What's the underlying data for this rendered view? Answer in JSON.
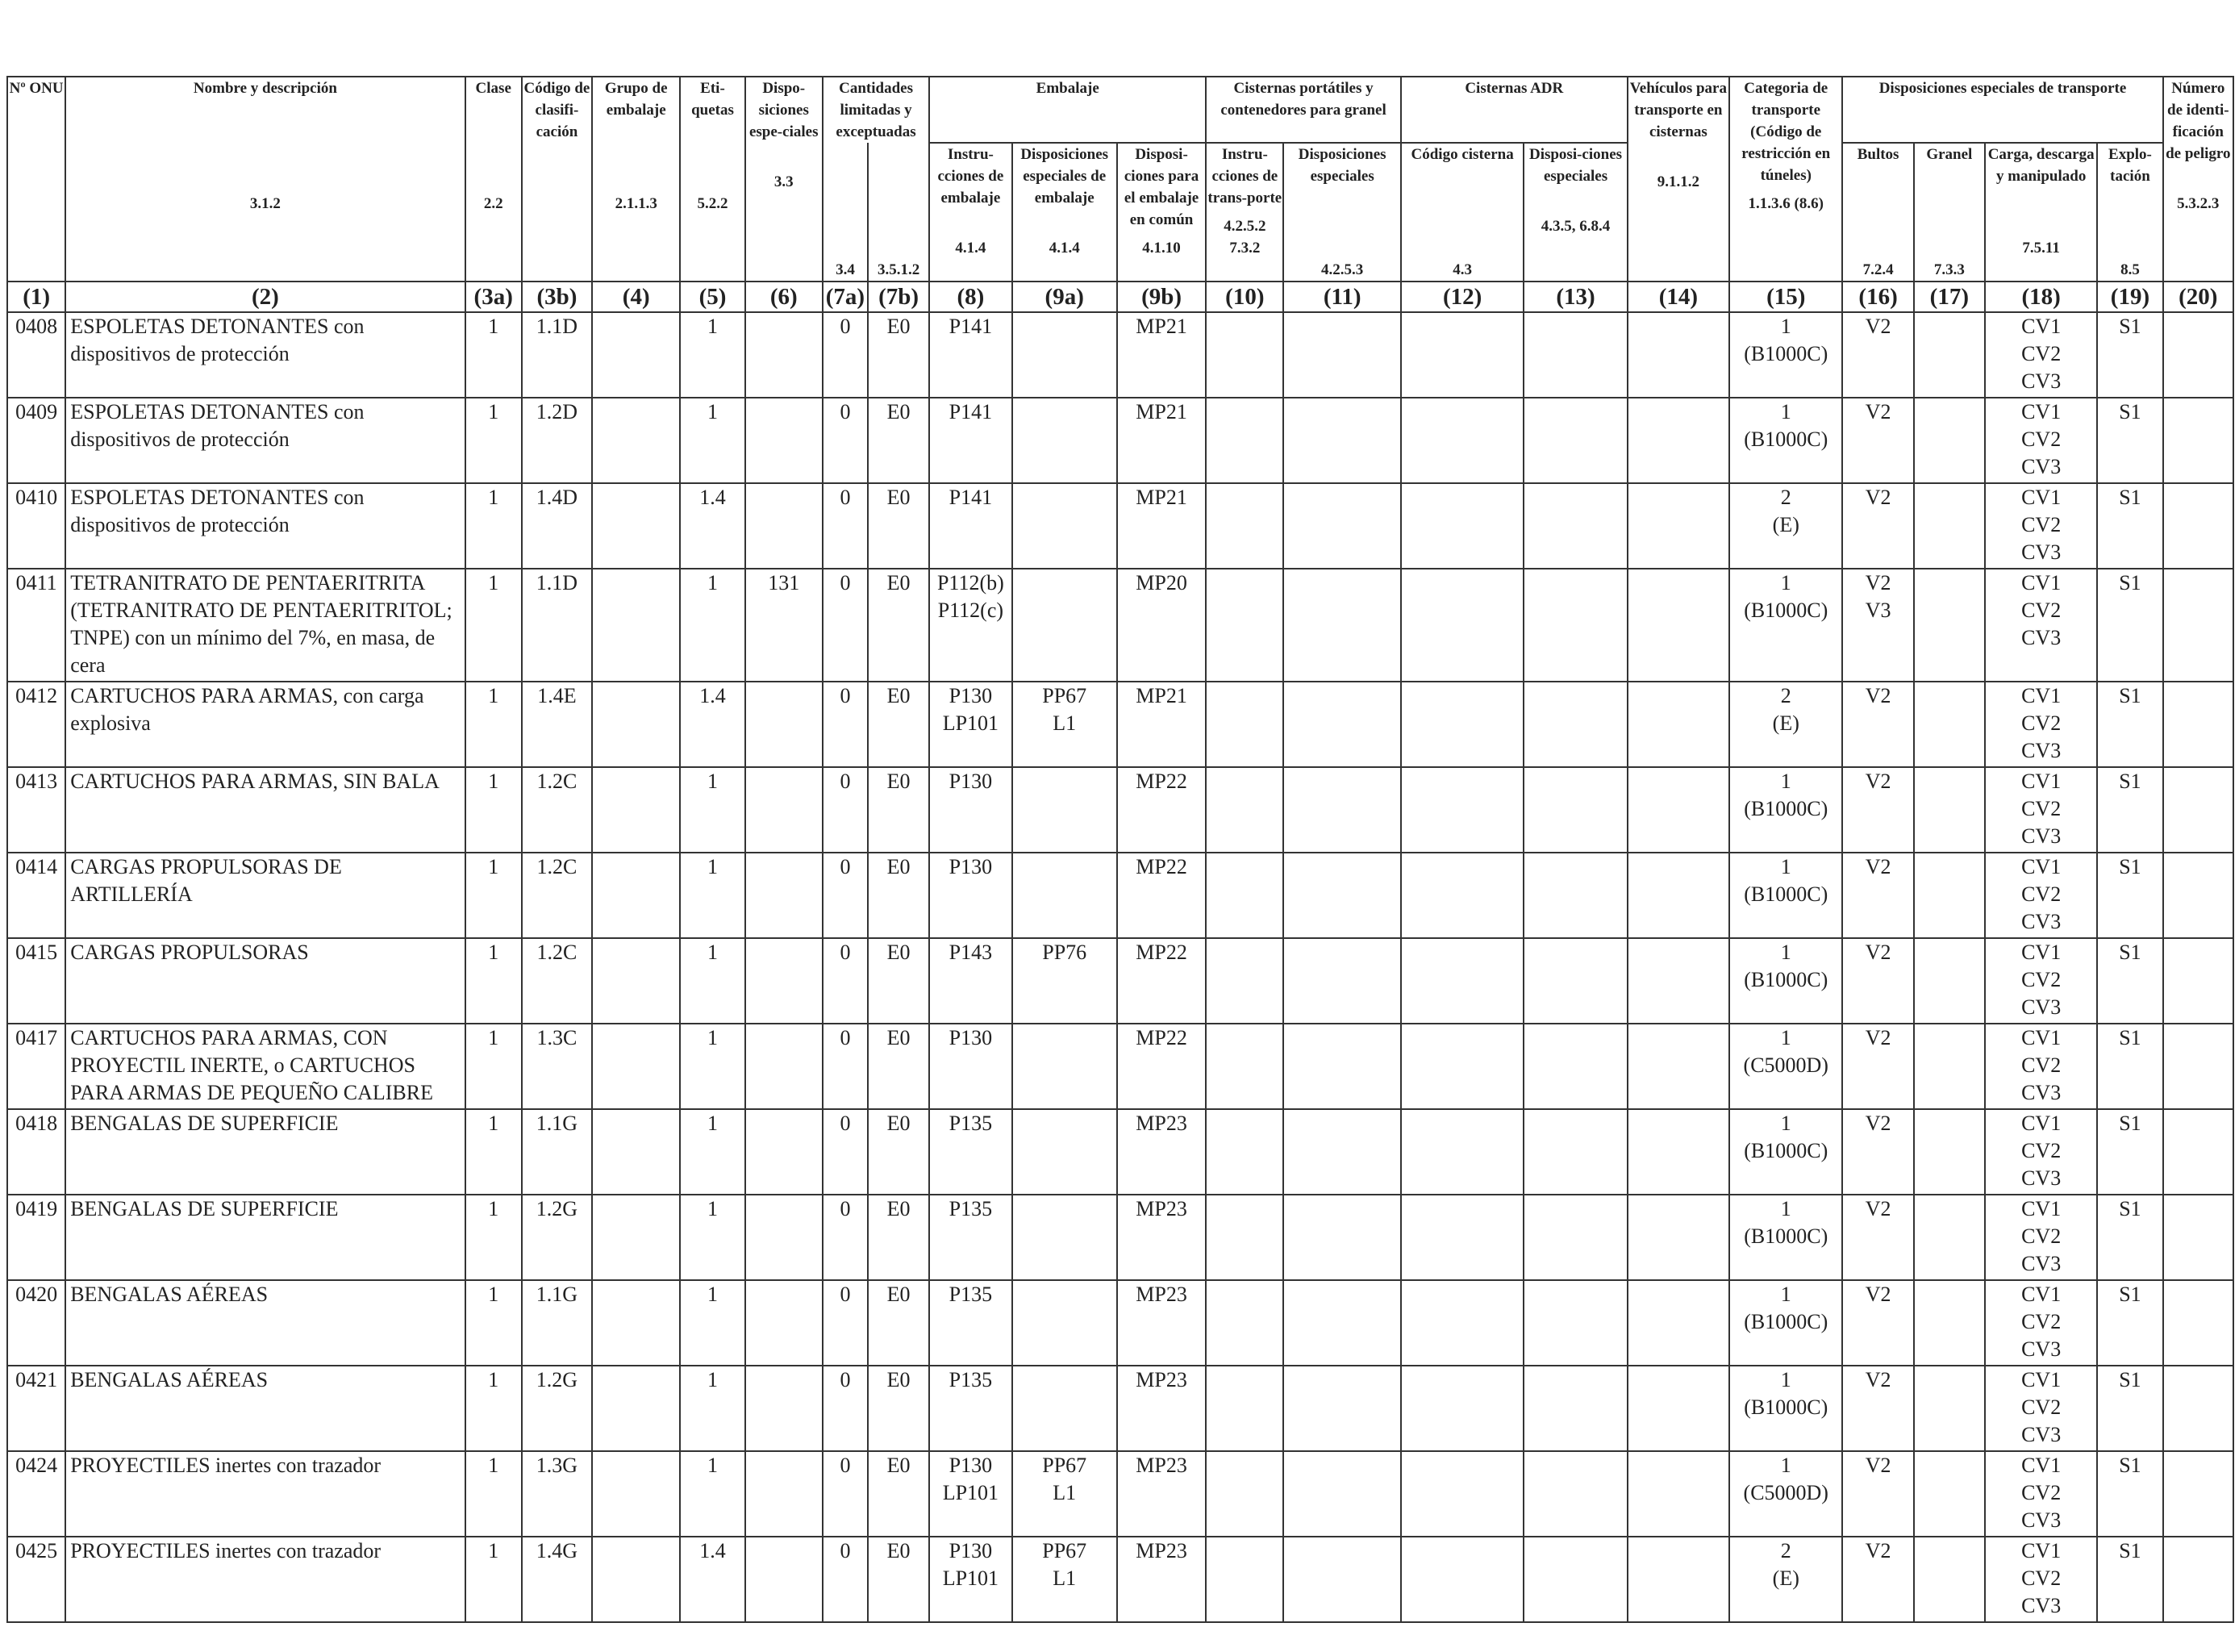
{
  "headers": {
    "c1": {
      "desc": "Nº ONU",
      "ref": "",
      "num": "(1)"
    },
    "c2": {
      "desc": "Nombre y descripción",
      "ref": "3.1.2",
      "num": "(2)"
    },
    "c3a": {
      "desc": "Clase",
      "ref": "2.2",
      "num": "(3a)"
    },
    "c3b": {
      "desc": "Código de clasifi-cación",
      "ref": "",
      "num": "(3b)"
    },
    "c4": {
      "desc": "Grupo de embalaje",
      "ref": "2.1.1.3",
      "num": "(4)"
    },
    "c5": {
      "desc": "Eti-quetas",
      "ref": "5.2.2",
      "num": "(5)"
    },
    "c6": {
      "desc": "Dispo-siciones espe-ciales",
      "ref": "3.3",
      "num": "(6)"
    },
    "g7": {
      "desc": "Cantidades limitadas y exceptuadas"
    },
    "c7a": {
      "ref": "3.4",
      "num": "(7a)"
    },
    "c7b": {
      "ref": "3.5.1.2",
      "num": "(7b)"
    },
    "g_emb": {
      "desc": "Embalaje"
    },
    "c8": {
      "desc": "Instru-cciones de embalaje",
      "ref": "4.1.4",
      "num": "(8)"
    },
    "c9a": {
      "desc": "Disposiciones especiales de embalaje",
      "ref": "4.1.4",
      "num": "(9a)"
    },
    "c9b": {
      "desc": "Disposi-ciones para el embalaje en común",
      "ref": "4.1.10",
      "num": "(9b)"
    },
    "g_cist": {
      "desc": "Cisternas portátiles y contenedores para granel"
    },
    "c10": {
      "desc": "Instru-cciones de trans-porte",
      "ref": "4.2.5.2 7.3.2",
      "num": "(10)"
    },
    "c11": {
      "desc": "Disposiciones especiales",
      "ref": "4.2.5.3",
      "num": "(11)"
    },
    "g_adr": {
      "desc": "Cisternas ADR"
    },
    "c12": {
      "desc": "Código cisterna",
      "ref": "4.3",
      "num": "(12)"
    },
    "c13": {
      "desc": "Disposi-ciones especiales",
      "ref": "4.3.5, 6.8.4",
      "num": "(13)"
    },
    "c14": {
      "desc": "Vehículos para transporte en cisternas",
      "ref": "9.1.1.2",
      "num": "(14)"
    },
    "c15": {
      "desc": "Categoria de transporte (Código de restricción en túneles)",
      "ref": "1.1.3.6 (8.6)",
      "num": "(15)"
    },
    "g_dis": {
      "desc": "Disposiciones especiales de transporte"
    },
    "c16": {
      "desc": "Bultos",
      "ref": "7.2.4",
      "num": "(16)"
    },
    "c17": {
      "desc": "Granel",
      "ref": "7.3.3",
      "num": "(17)"
    },
    "c18": {
      "desc": "Carga, descarga y manipulado",
      "ref": "7.5.11",
      "num": "(18)"
    },
    "c19": {
      "desc": "Explo-tación",
      "ref": "8.5",
      "num": "(19)"
    },
    "c20": {
      "desc": "Número de identi-ficación de peligro",
      "ref": "5.3.2.3",
      "num": "(20)"
    }
  },
  "rows": [
    {
      "un": "0408",
      "name": "ESPOLETAS DETONANTES con dispositivos de protección",
      "clase": "1",
      "codigo": "1.1D",
      "grupo": "",
      "etiquetas": "1",
      "disp": "",
      "c7a": "0",
      "c7b": "E0",
      "c8": [
        "P141"
      ],
      "c9a": [],
      "c9b": "MP21",
      "c15": [
        "1",
        "(B1000C)"
      ],
      "c16": [
        "V2"
      ],
      "c18": [
        "CV1",
        "CV2",
        "CV3"
      ],
      "c19": "S1"
    },
    {
      "un": "0409",
      "name": "ESPOLETAS DETONANTES con dispositivos de protección",
      "clase": "1",
      "codigo": "1.2D",
      "grupo": "",
      "etiquetas": "1",
      "disp": "",
      "c7a": "0",
      "c7b": "E0",
      "c8": [
        "P141"
      ],
      "c9a": [],
      "c9b": "MP21",
      "c15": [
        "1",
        "(B1000C)"
      ],
      "c16": [
        "V2"
      ],
      "c18": [
        "CV1",
        "CV2",
        "CV3"
      ],
      "c19": "S1"
    },
    {
      "un": "0410",
      "name": "ESPOLETAS DETONANTES con dispositivos de protección",
      "clase": "1",
      "codigo": "1.4D",
      "grupo": "",
      "etiquetas": "1.4",
      "disp": "",
      "c7a": "0",
      "c7b": "E0",
      "c8": [
        "P141"
      ],
      "c9a": [],
      "c9b": "MP21",
      "c15": [
        "2",
        "(E)"
      ],
      "c16": [
        "V2"
      ],
      "c18": [
        "CV1",
        "CV2",
        "CV3"
      ],
      "c19": "S1"
    },
    {
      "un": "0411",
      "name": "TETRANITRATO DE PENTAERITRITA (TETRANITRATO DE PENTAERITRITOL; TNPE) con un mínimo del 7%, en masa, de cera",
      "clase": "1",
      "codigo": "1.1D",
      "grupo": "",
      "etiquetas": "1",
      "disp": "131",
      "c7a": "0",
      "c7b": "E0",
      "c8": [
        "P112(b)",
        "P112(c)"
      ],
      "c9a": [],
      "c9b": "MP20",
      "c15": [
        "1",
        "(B1000C)"
      ],
      "c16": [
        "V2",
        "V3"
      ],
      "c18": [
        "CV1",
        "CV2",
        "CV3"
      ],
      "c19": "S1"
    },
    {
      "un": "0412",
      "name": "CARTUCHOS PARA ARMAS, con carga explosiva",
      "clase": "1",
      "codigo": "1.4E",
      "grupo": "",
      "etiquetas": "1.4",
      "disp": "",
      "c7a": "0",
      "c7b": "E0",
      "c8": [
        "P130",
        "LP101"
      ],
      "c9a": [
        "PP67",
        "L1"
      ],
      "c9b": "MP21",
      "c15": [
        "2",
        "(E)"
      ],
      "c16": [
        "V2"
      ],
      "c18": [
        "CV1",
        "CV2",
        "CV3"
      ],
      "c19": "S1"
    },
    {
      "un": "0413",
      "name": "CARTUCHOS PARA ARMAS, SIN BALA",
      "clase": "1",
      "codigo": "1.2C",
      "grupo": "",
      "etiquetas": "1",
      "disp": "",
      "c7a": "0",
      "c7b": "E0",
      "c8": [
        "P130"
      ],
      "c9a": [],
      "c9b": "MP22",
      "c15": [
        "1",
        "(B1000C)"
      ],
      "c16": [
        "V2"
      ],
      "c18": [
        "CV1",
        "CV2",
        "CV3"
      ],
      "c19": "S1"
    },
    {
      "un": "0414",
      "name": "CARGAS PROPULSORAS DE ARTILLERÍA",
      "clase": "1",
      "codigo": "1.2C",
      "grupo": "",
      "etiquetas": "1",
      "disp": "",
      "c7a": "0",
      "c7b": "E0",
      "c8": [
        "P130"
      ],
      "c9a": [],
      "c9b": "MP22",
      "c15": [
        "1",
        "(B1000C)"
      ],
      "c16": [
        "V2"
      ],
      "c18": [
        "CV1",
        "CV2",
        "CV3"
      ],
      "c19": "S1"
    },
    {
      "un": "0415",
      "name": "CARGAS PROPULSORAS",
      "clase": "1",
      "codigo": "1.2C",
      "grupo": "",
      "etiquetas": "1",
      "disp": "",
      "c7a": "0",
      "c7b": "E0",
      "c8": [
        "P143"
      ],
      "c9a": [
        "PP76"
      ],
      "c9b": "MP22",
      "c15": [
        "1",
        "(B1000C)"
      ],
      "c16": [
        "V2"
      ],
      "c18": [
        "CV1",
        "CV2",
        "CV3"
      ],
      "c19": "S1"
    },
    {
      "un": "0417",
      "name": "CARTUCHOS PARA ARMAS, CON PROYECTIL INERTE, o CARTUCHOS PARA ARMAS DE PEQUEÑO CALIBRE",
      "clase": "1",
      "codigo": "1.3C",
      "grupo": "",
      "etiquetas": "1",
      "disp": "",
      "c7a": "0",
      "c7b": "E0",
      "c8": [
        "P130"
      ],
      "c9a": [],
      "c9b": "MP22",
      "c15": [
        "1",
        "(C5000D)"
      ],
      "c16": [
        "V2"
      ],
      "c18": [
        "CV1",
        "CV2",
        "CV3"
      ],
      "c19": "S1"
    },
    {
      "un": "0418",
      "name": "BENGALAS DE SUPERFICIE",
      "clase": "1",
      "codigo": "1.1G",
      "grupo": "",
      "etiquetas": "1",
      "disp": "",
      "c7a": "0",
      "c7b": "E0",
      "c8": [
        "P135"
      ],
      "c9a": [],
      "c9b": "MP23",
      "c15": [
        "1",
        "(B1000C)"
      ],
      "c16": [
        "V2"
      ],
      "c18": [
        "CV1",
        "CV2",
        "CV3"
      ],
      "c19": "S1"
    },
    {
      "un": "0419",
      "name": "BENGALAS DE SUPERFICIE",
      "clase": "1",
      "codigo": "1.2G",
      "grupo": "",
      "etiquetas": "1",
      "disp": "",
      "c7a": "0",
      "c7b": "E0",
      "c8": [
        "P135"
      ],
      "c9a": [],
      "c9b": "MP23",
      "c15": [
        "1",
        "(B1000C)"
      ],
      "c16": [
        "V2"
      ],
      "c18": [
        "CV1",
        "CV2",
        "CV3"
      ],
      "c19": "S1"
    },
    {
      "un": "0420",
      "name": "BENGALAS AÉREAS",
      "clase": "1",
      "codigo": "1.1G",
      "grupo": "",
      "etiquetas": "1",
      "disp": "",
      "c7a": "0",
      "c7b": "E0",
      "c8": [
        "P135"
      ],
      "c9a": [],
      "c9b": "MP23",
      "c15": [
        "1",
        "(B1000C)"
      ],
      "c16": [
        "V2"
      ],
      "c18": [
        "CV1",
        "CV2",
        "CV3"
      ],
      "c19": "S1"
    },
    {
      "un": "0421",
      "name": "BENGALAS AÉREAS",
      "clase": "1",
      "codigo": "1.2G",
      "grupo": "",
      "etiquetas": "1",
      "disp": "",
      "c7a": "0",
      "c7b": "E0",
      "c8": [
        "P135"
      ],
      "c9a": [],
      "c9b": "MP23",
      "c15": [
        "1",
        "(B1000C)"
      ],
      "c16": [
        "V2"
      ],
      "c18": [
        "CV1",
        "CV2",
        "CV3"
      ],
      "c19": "S1"
    },
    {
      "un": "0424",
      "name": "PROYECTILES inertes con trazador",
      "clase": "1",
      "codigo": "1.3G",
      "grupo": "",
      "etiquetas": "1",
      "disp": "",
      "c7a": "0",
      "c7b": "E0",
      "c8": [
        "P130",
        "LP101"
      ],
      "c9a": [
        "PP67",
        "L1"
      ],
      "c9b": "MP23",
      "c15": [
        "1",
        "(C5000D)"
      ],
      "c16": [
        "V2"
      ],
      "c18": [
        "CV1",
        "CV2",
        "CV3"
      ],
      "c19": "S1"
    },
    {
      "un": "0425",
      "name": "PROYECTILES inertes con trazador",
      "clase": "1",
      "codigo": "1.4G",
      "grupo": "",
      "etiquetas": "1.4",
      "disp": "",
      "c7a": "0",
      "c7b": "E0",
      "c8": [
        "P130",
        "LP101"
      ],
      "c9a": [
        "PP67",
        "L1"
      ],
      "c9b": "MP23",
      "c15": [
        "2",
        "(E)"
      ],
      "c16": [
        "V2"
      ],
      "c18": [
        "CV1",
        "CV2",
        "CV3"
      ],
      "c19": "S1"
    }
  ]
}
